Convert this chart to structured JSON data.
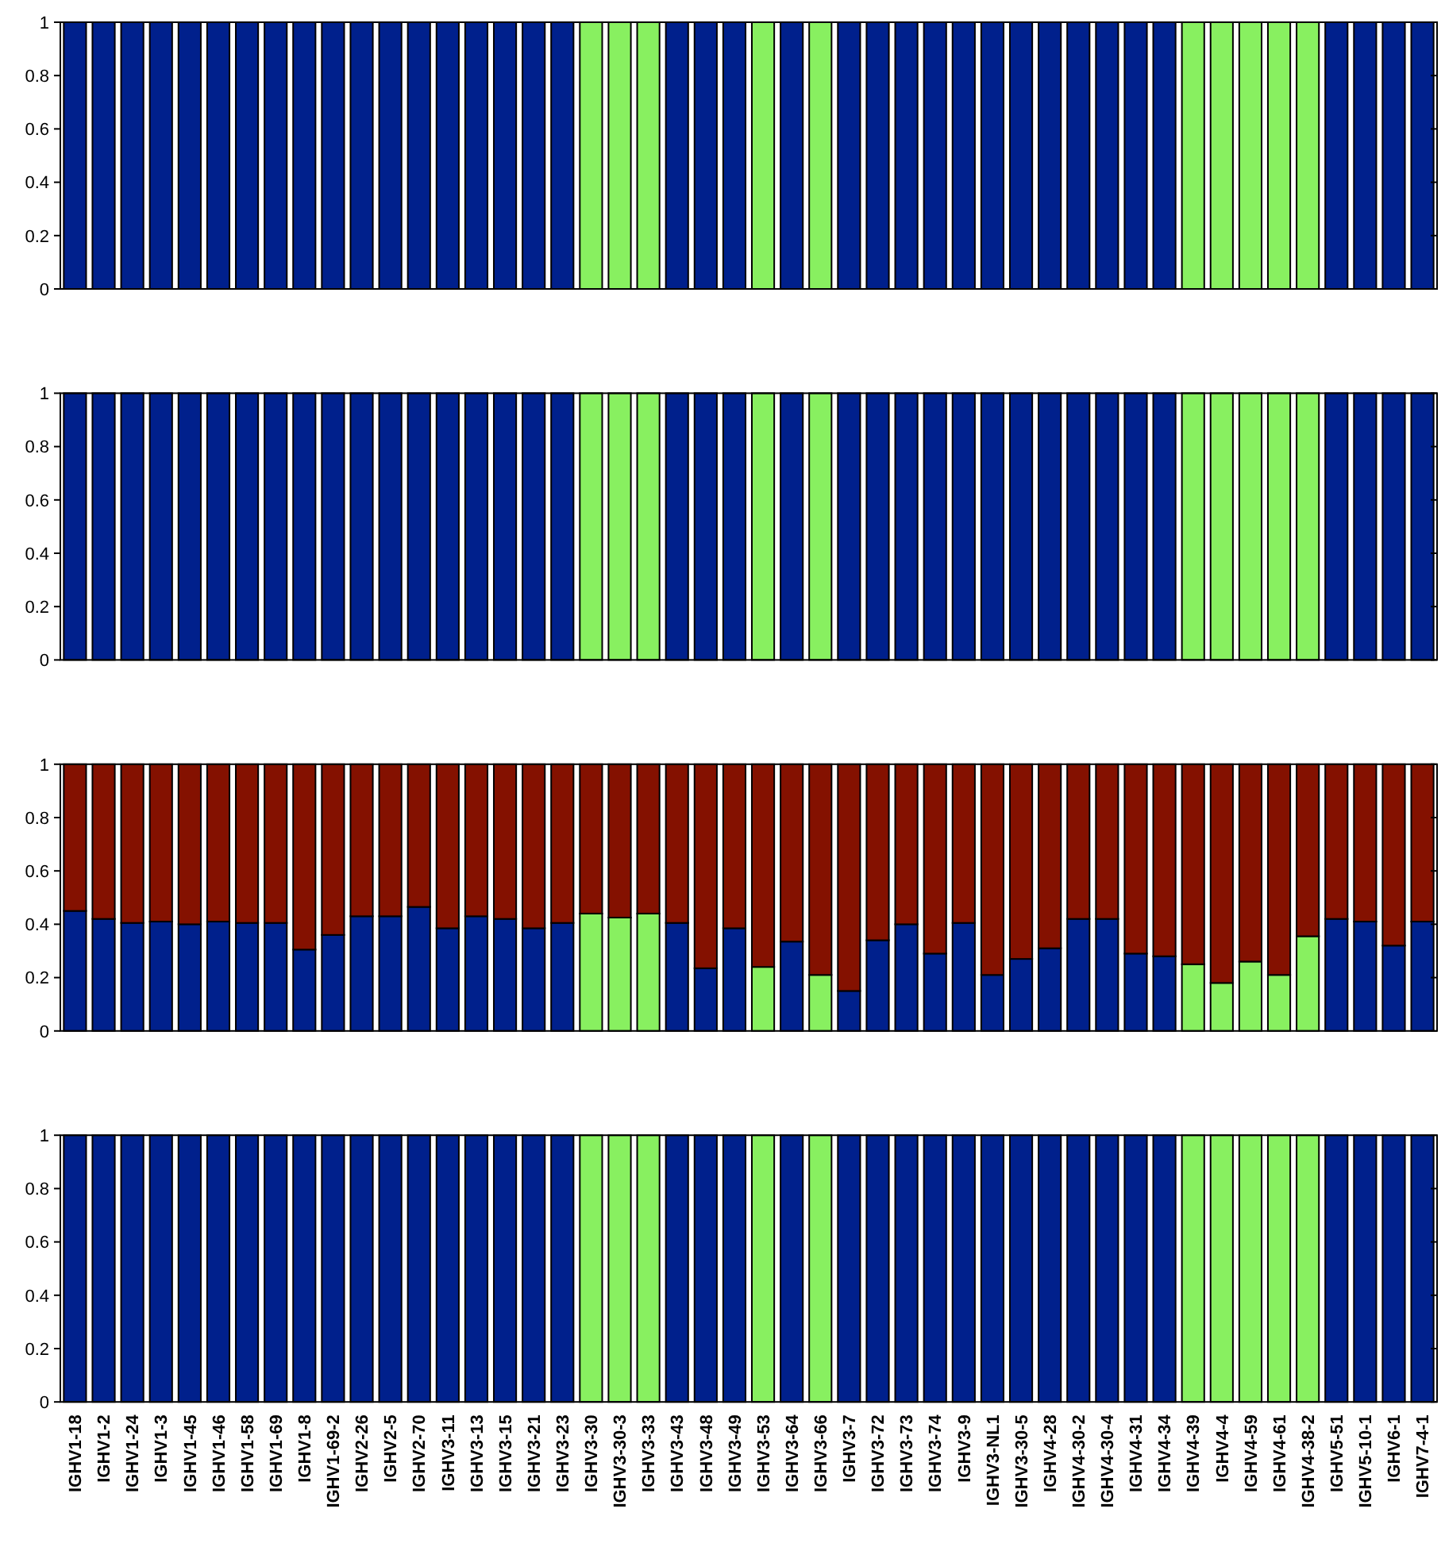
{
  "chart_data": [
    {
      "type": "bar",
      "categories": [
        null,
        null,
        null,
        null,
        null,
        null,
        null,
        null,
        null,
        null,
        null,
        null,
        null,
        null,
        null,
        null,
        null,
        null,
        null,
        null,
        null,
        null,
        null,
        null,
        null,
        null,
        null,
        null,
        null,
        null,
        null,
        null,
        null,
        null,
        null,
        null,
        null,
        null,
        null,
        null,
        null,
        null,
        null,
        null,
        null,
        null,
        null,
        null
      ],
      "ylim": [
        0,
        1
      ],
      "yticks": [
        0,
        0.2,
        0.4,
        0.6,
        0.8,
        1
      ],
      "tick_labels": "y",
      "series": [
        {
          "values": [
            1,
            1,
            1,
            1,
            1,
            1,
            1,
            1,
            1,
            1,
            1,
            1,
            1,
            1,
            1,
            1,
            1,
            1,
            1,
            1,
            1,
            1,
            1,
            1,
            1,
            1,
            1,
            1,
            1,
            1,
            1,
            1,
            1,
            1,
            1,
            1,
            1,
            1,
            1,
            1,
            1,
            1,
            1,
            1,
            1,
            1,
            1,
            1
          ],
          "colors": [
            "#00208c",
            "#00208c",
            "#00208c",
            "#00208c",
            "#00208c",
            "#00208c",
            "#00208c",
            "#00208c",
            "#00208c",
            "#00208c",
            "#00208c",
            "#00208c",
            "#00208c",
            "#00208c",
            "#00208c",
            "#00208c",
            "#00208c",
            "#00208c",
            "#88f060",
            "#88f060",
            "#88f060",
            "#00208c",
            "#00208c",
            "#00208c",
            "#88f060",
            "#00208c",
            "#88f060",
            "#00208c",
            "#00208c",
            "#00208c",
            "#00208c",
            "#00208c",
            "#00208c",
            "#00208c",
            "#00208c",
            "#00208c",
            "#00208c",
            "#00208c",
            "#00208c",
            "#88f060",
            "#88f060",
            "#88f060",
            "#88f060",
            "#88f060",
            "#00208c",
            "#00208c",
            "#00208c",
            "#00208c"
          ]
        }
      ]
    },
    {
      "type": "bar",
      "categories": [
        null,
        null,
        null,
        null,
        null,
        null,
        null,
        null,
        null,
        null,
        null,
        null,
        null,
        null,
        null,
        null,
        null,
        null,
        null,
        null,
        null,
        null,
        null,
        null,
        null,
        null,
        null,
        null,
        null,
        null,
        null,
        null,
        null,
        null,
        null,
        null,
        null,
        null,
        null,
        null,
        null,
        null,
        null,
        null,
        null,
        null,
        null,
        null
      ],
      "ylim": [
        0,
        1
      ],
      "yticks": [
        0,
        0.2,
        0.4,
        0.6,
        0.8,
        1
      ],
      "tick_labels": "y",
      "series": [
        {
          "values": [
            1,
            1,
            1,
            1,
            1,
            1,
            1,
            1,
            1,
            1,
            1,
            1,
            1,
            1,
            1,
            1,
            1,
            1,
            1,
            1,
            1,
            1,
            1,
            1,
            1,
            1,
            1,
            1,
            1,
            1,
            1,
            1,
            1,
            1,
            1,
            1,
            1,
            1,
            1,
            1,
            1,
            1,
            1,
            1,
            1,
            1,
            1,
            1
          ],
          "colors": [
            "#00208c",
            "#00208c",
            "#00208c",
            "#00208c",
            "#00208c",
            "#00208c",
            "#00208c",
            "#00208c",
            "#00208c",
            "#00208c",
            "#00208c",
            "#00208c",
            "#00208c",
            "#00208c",
            "#00208c",
            "#00208c",
            "#00208c",
            "#00208c",
            "#88f060",
            "#88f060",
            "#88f060",
            "#00208c",
            "#00208c",
            "#00208c",
            "#88f060",
            "#00208c",
            "#88f060",
            "#00208c",
            "#00208c",
            "#00208c",
            "#00208c",
            "#00208c",
            "#00208c",
            "#00208c",
            "#00208c",
            "#00208c",
            "#00208c",
            "#00208c",
            "#00208c",
            "#88f060",
            "#88f060",
            "#88f060",
            "#88f060",
            "#88f060",
            "#00208c",
            "#00208c",
            "#00208c",
            "#00208c"
          ]
        }
      ]
    },
    {
      "type": "bar",
      "stacked": true,
      "categories": [
        null,
        null,
        null,
        null,
        null,
        null,
        null,
        null,
        null,
        null,
        null,
        null,
        null,
        null,
        null,
        null,
        null,
        null,
        null,
        null,
        null,
        null,
        null,
        null,
        null,
        null,
        null,
        null,
        null,
        null,
        null,
        null,
        null,
        null,
        null,
        null,
        null,
        null,
        null,
        null,
        null,
        null,
        null,
        null,
        null,
        null,
        null,
        null
      ],
      "ylim": [
        0,
        1
      ],
      "yticks": [
        0,
        0.2,
        0.4,
        0.6,
        0.8,
        1
      ],
      "tick_labels": "y",
      "series": [
        {
          "values": [
            0.45,
            0.42,
            0.405,
            0.41,
            0.4,
            0.41,
            0.405,
            0.405,
            0.305,
            0.36,
            0.43,
            0.43,
            0.465,
            0.385,
            0.43,
            0.42,
            0.385,
            0.405,
            0.44,
            0.425,
            0.44,
            0.405,
            0.235,
            0.385,
            0.24,
            0.335,
            0.21,
            0.15,
            0.34,
            0.4,
            0.29,
            0.405,
            0.21,
            0.27,
            0.31,
            0.42,
            0.42,
            0.29,
            0.28,
            0.25,
            0.18,
            0.26,
            0.21,
            0.355,
            0.42,
            0.41,
            0.32,
            0.41
          ],
          "colors": [
            "#00208c",
            "#00208c",
            "#00208c",
            "#00208c",
            "#00208c",
            "#00208c",
            "#00208c",
            "#00208c",
            "#00208c",
            "#00208c",
            "#00208c",
            "#00208c",
            "#00208c",
            "#00208c",
            "#00208c",
            "#00208c",
            "#00208c",
            "#00208c",
            "#88f060",
            "#88f060",
            "#88f060",
            "#00208c",
            "#00208c",
            "#00208c",
            "#88f060",
            "#00208c",
            "#88f060",
            "#00208c",
            "#00208c",
            "#00208c",
            "#00208c",
            "#00208c",
            "#00208c",
            "#00208c",
            "#00208c",
            "#00208c",
            "#00208c",
            "#00208c",
            "#00208c",
            "#88f060",
            "#88f060",
            "#88f060",
            "#88f060",
            "#88f060",
            "#00208c",
            "#00208c",
            "#00208c",
            "#00208c"
          ]
        },
        {
          "values": [
            0.55,
            0.58,
            0.595,
            0.59,
            0.6,
            0.59,
            0.595,
            0.595,
            0.695,
            0.64,
            0.57,
            0.57,
            0.535,
            0.615,
            0.57,
            0.58,
            0.615,
            0.595,
            0.56,
            0.575,
            0.56,
            0.595,
            0.765,
            0.615,
            0.76,
            0.665,
            0.79,
            0.85,
            0.66,
            0.6,
            0.71,
            0.595,
            0.79,
            0.73,
            0.69,
            0.58,
            0.58,
            0.71,
            0.72,
            0.75,
            0.82,
            0.74,
            0.79,
            0.645,
            0.58,
            0.59,
            0.68,
            0.59
          ],
          "color": "#841100"
        }
      ]
    },
    {
      "type": "bar",
      "categories": [
        "IGHV1-18",
        "IGHV1-2",
        "IGHV1-24",
        "IGHV1-3",
        "IGHV1-45",
        "IGHV1-46",
        "IGHV1-58",
        "IGHV1-69",
        "IGHV1-8",
        "IGHV1-69-2",
        "IGHV2-26",
        "IGHV2-5",
        "IGHV2-70",
        "IGHV3-11",
        "IGHV3-13",
        "IGHV3-15",
        "IGHV3-21",
        "IGHV3-23",
        "IGHV3-30",
        "IGHV3-30-3",
        "IGHV3-33",
        "IGHV3-43",
        "IGHV3-48",
        "IGHV3-49",
        "IGHV3-53",
        "IGHV3-64",
        "IGHV3-66",
        "IGHV3-7",
        "IGHV3-72",
        "IGHV3-73",
        "IGHV3-74",
        "IGHV3-9",
        "IGHV3-NL1",
        "IGHV3-30-5",
        "IGHV4-28",
        "IGHV4-30-2",
        "IGHV4-30-4",
        "IGHV4-31",
        "IGHV4-34",
        "IGHV4-39",
        "IGHV4-4",
        "IGHV4-59",
        "IGHV4-61",
        "IGHV4-38-2",
        "IGHV5-51",
        "IGHV5-10-1",
        "IGHV6-1",
        "IGHV7-4-1"
      ],
      "ylim": [
        0,
        1
      ],
      "yticks": [
        0,
        0.2,
        0.4,
        0.6,
        0.8,
        1
      ],
      "series": [
        {
          "values": [
            1,
            1,
            1,
            1,
            1,
            1,
            1,
            1,
            1,
            1,
            1,
            1,
            1,
            1,
            1,
            1,
            1,
            1,
            1,
            1,
            1,
            1,
            1,
            1,
            1,
            1,
            1,
            1,
            1,
            1,
            1,
            1,
            1,
            1,
            1,
            1,
            1,
            1,
            1,
            1,
            1,
            1,
            1,
            1,
            1,
            1,
            1,
            1
          ],
          "colors": [
            "#00208c",
            "#00208c",
            "#00208c",
            "#00208c",
            "#00208c",
            "#00208c",
            "#00208c",
            "#00208c",
            "#00208c",
            "#00208c",
            "#00208c",
            "#00208c",
            "#00208c",
            "#00208c",
            "#00208c",
            "#00208c",
            "#00208c",
            "#00208c",
            "#88f060",
            "#88f060",
            "#88f060",
            "#00208c",
            "#00208c",
            "#00208c",
            "#88f060",
            "#00208c",
            "#88f060",
            "#00208c",
            "#00208c",
            "#00208c",
            "#00208c",
            "#00208c",
            "#00208c",
            "#00208c",
            "#00208c",
            "#00208c",
            "#00208c",
            "#00208c",
            "#00208c",
            "#88f060",
            "#88f060",
            "#88f060",
            "#88f060",
            "#88f060",
            "#00208c",
            "#00208c",
            "#00208c",
            "#00208c"
          ]
        }
      ]
    }
  ]
}
